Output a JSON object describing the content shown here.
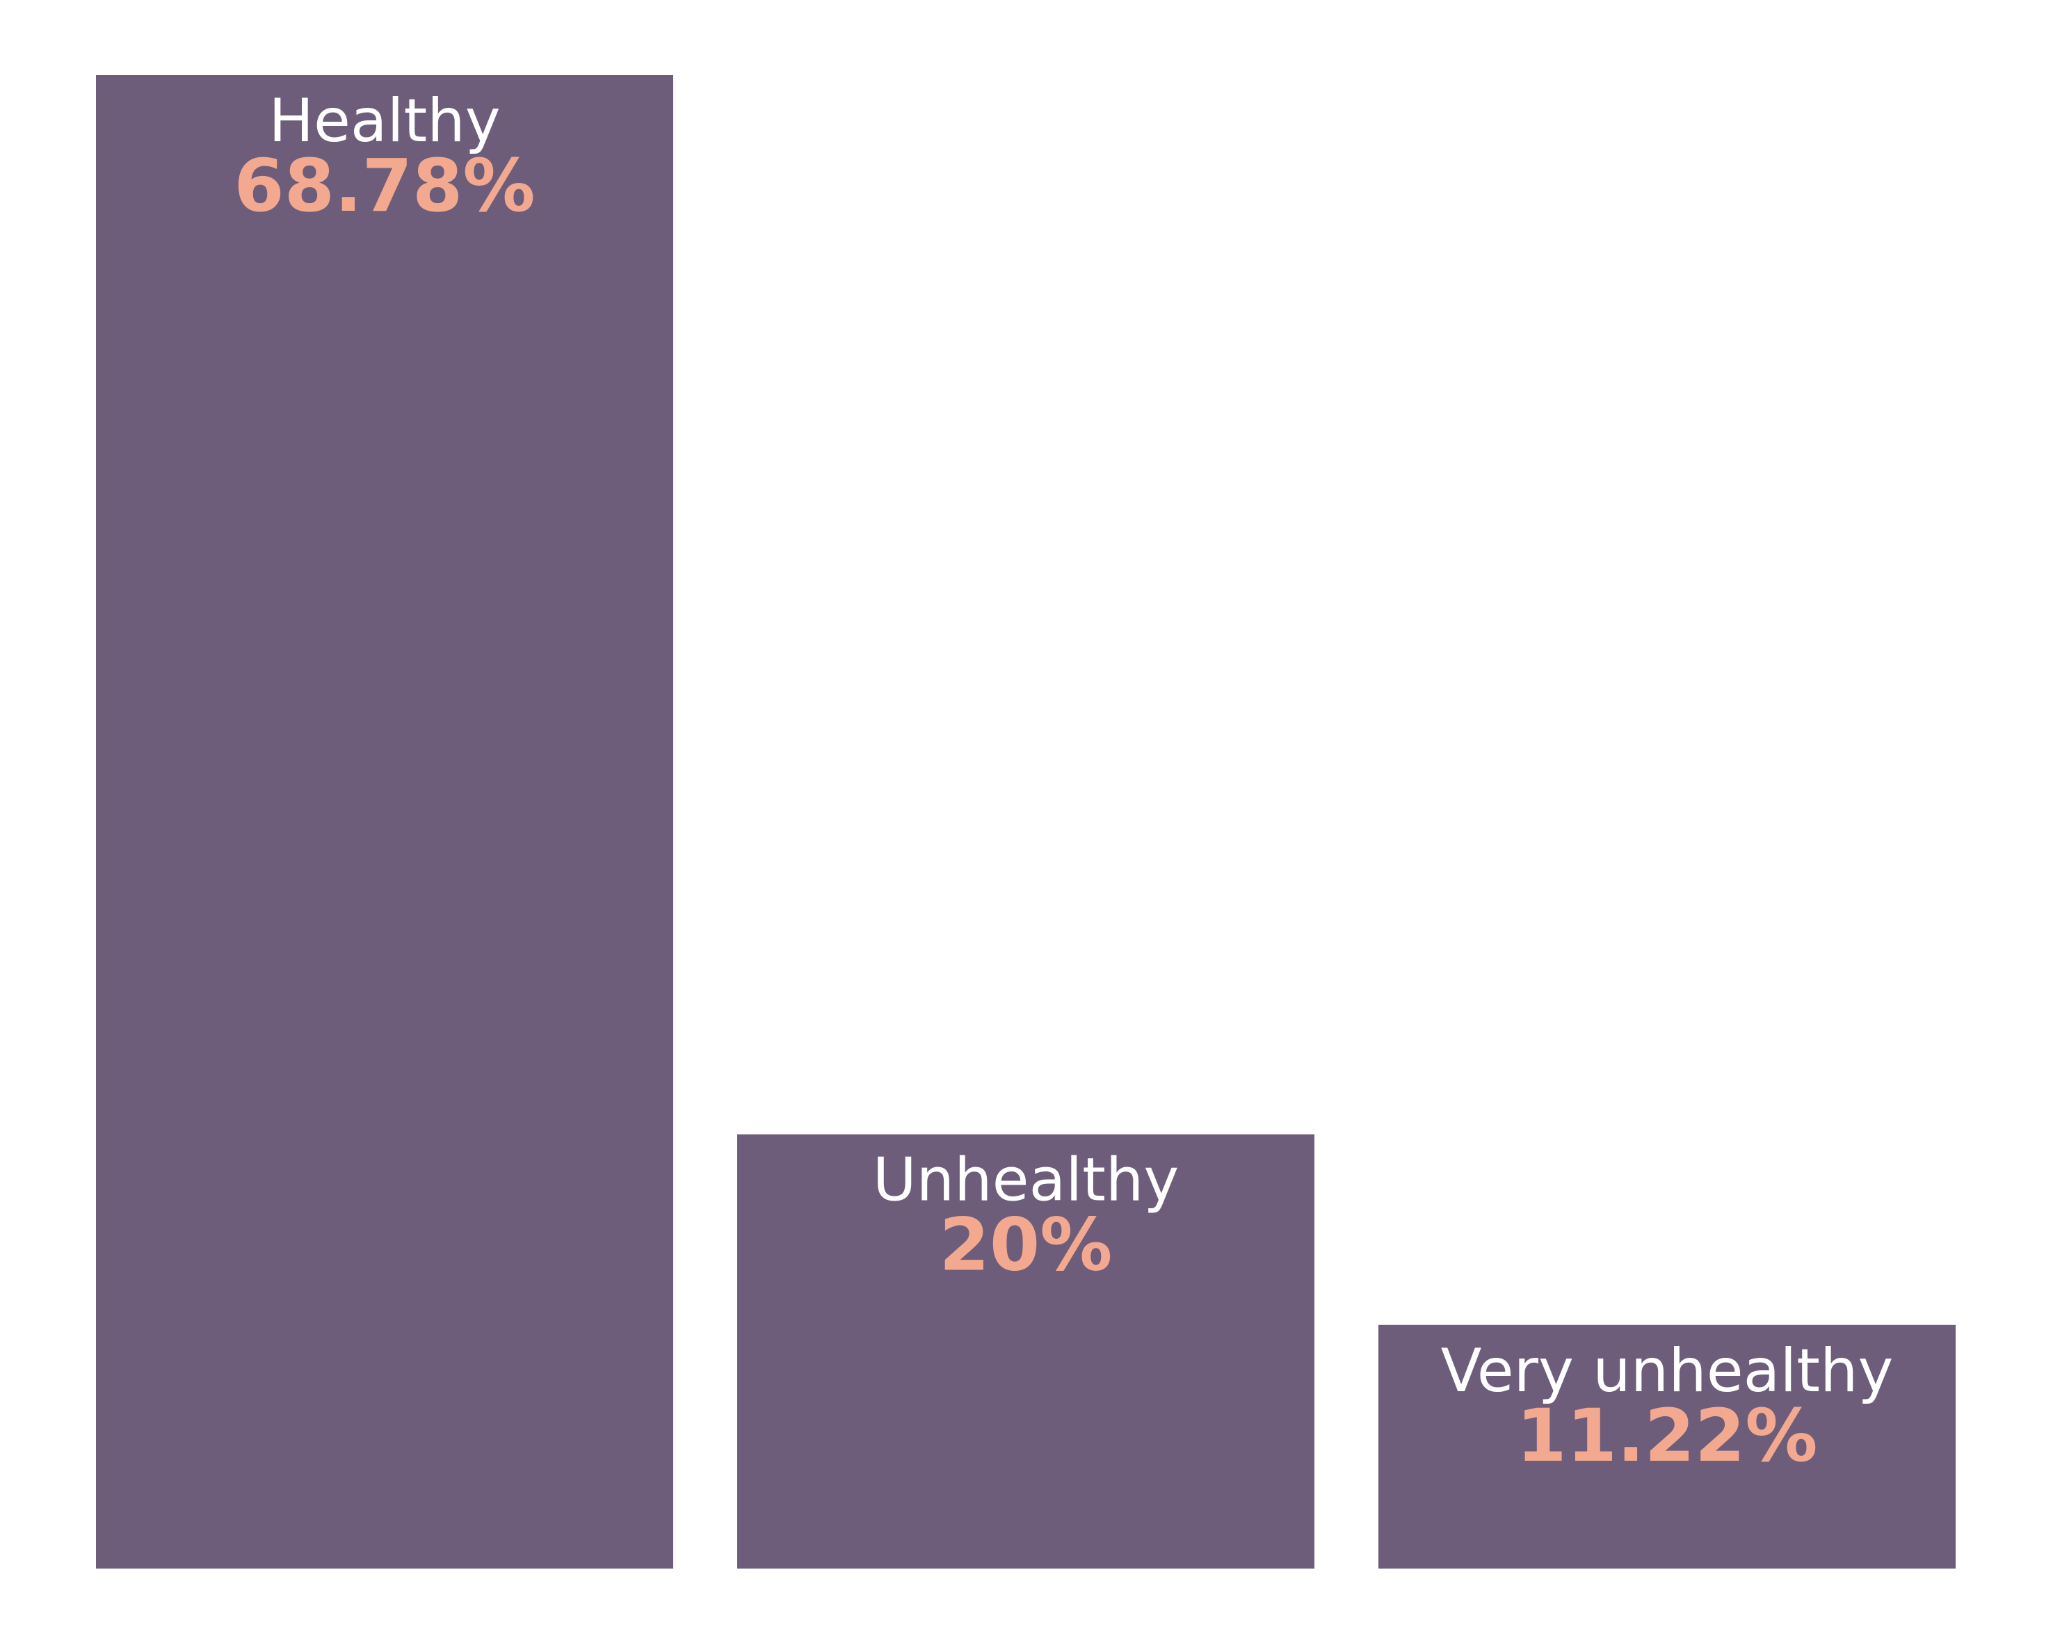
{
  "chart_data": {
    "type": "bar",
    "categories": [
      "Healthy",
      "Unhealthy",
      "Very unhealthy"
    ],
    "values": [
      68.78,
      20,
      11.22
    ],
    "value_labels": [
      "68.78%",
      "20%",
      "11.22%"
    ],
    "ylim": [
      0,
      68.78
    ],
    "grid": false,
    "legend": "none"
  },
  "colors": {
    "bar": "#6d5d7b",
    "category_label": "#ffffff",
    "value_label": "#f2a98f",
    "background": "#ffffff"
  }
}
